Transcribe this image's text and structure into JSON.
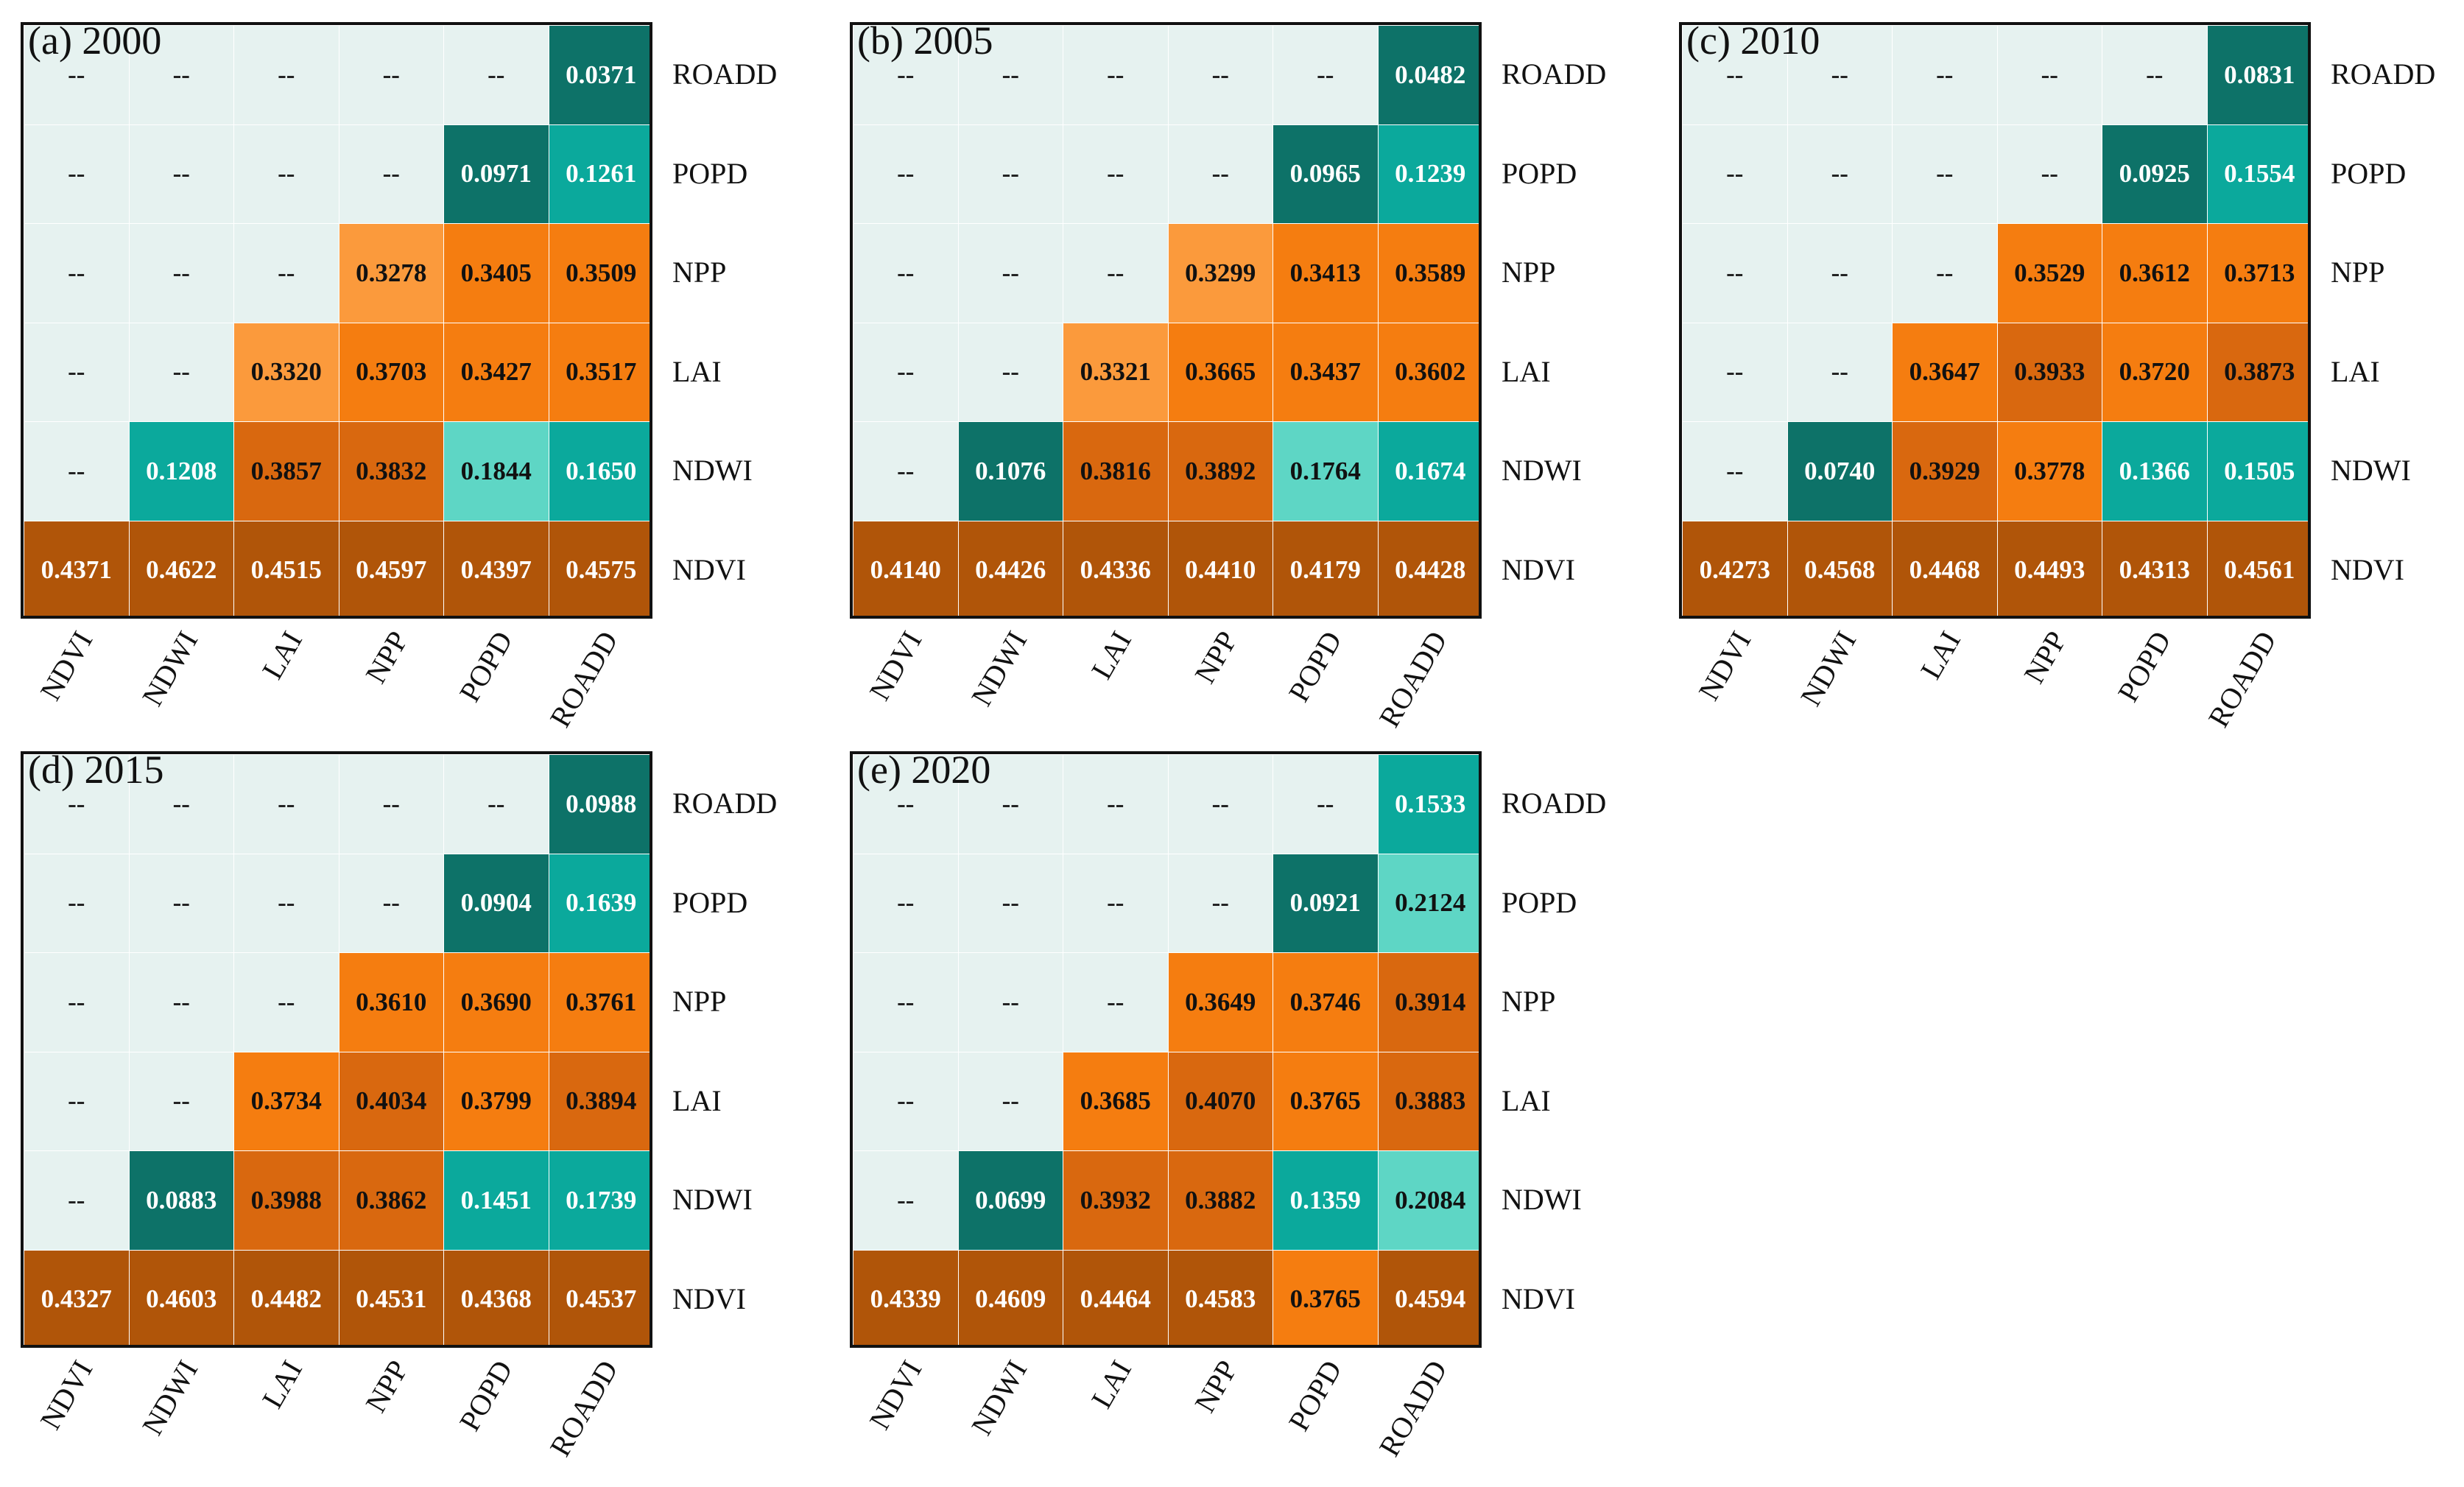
{
  "chart_data": [
    {
      "type": "heatmap",
      "title": "(a) 2000",
      "x_labels": [
        "NDVI",
        "NDWI",
        "LAI",
        "NPP",
        "POPD",
        "ROADD"
      ],
      "y_labels_top_to_bottom": [
        "ROADD",
        "POPD",
        "NPP",
        "LAI",
        "NDWI",
        "NDVI"
      ],
      "empty_symbol": "--",
      "cells": [
        [
          "--",
          "--",
          "--",
          "--",
          "--",
          "0.0371"
        ],
        [
          "--",
          "--",
          "--",
          "--",
          "0.0971",
          "0.1261"
        ],
        [
          "--",
          "--",
          "--",
          "0.3278",
          "0.3405",
          "0.3509"
        ],
        [
          "--",
          "--",
          "0.3320",
          "0.3703",
          "0.3427",
          "0.3517"
        ],
        [
          "--",
          "0.1208",
          "0.3857",
          "0.3832",
          "0.1844",
          "0.1650"
        ],
        [
          "0.4371",
          "0.4622",
          "0.4515",
          "0.4597",
          "0.4397",
          "0.4575"
        ]
      ]
    },
    {
      "type": "heatmap",
      "title": "(b) 2005",
      "x_labels": [
        "NDVI",
        "NDWI",
        "LAI",
        "NPP",
        "POPD",
        "ROADD"
      ],
      "y_labels_top_to_bottom": [
        "ROADD",
        "POPD",
        "NPP",
        "LAI",
        "NDWI",
        "NDVI"
      ],
      "empty_symbol": "--",
      "cells": [
        [
          "--",
          "--",
          "--",
          "--",
          "--",
          "0.0482"
        ],
        [
          "--",
          "--",
          "--",
          "--",
          "0.0965",
          "0.1239"
        ],
        [
          "--",
          "--",
          "--",
          "0.3299",
          "0.3413",
          "0.3589"
        ],
        [
          "--",
          "--",
          "0.3321",
          "0.3665",
          "0.3437",
          "0.3602"
        ],
        [
          "--",
          "0.1076",
          "0.3816",
          "0.3892",
          "0.1764",
          "0.1674"
        ],
        [
          "0.4140",
          "0.4426",
          "0.4336",
          "0.4410",
          "0.4179",
          "0.4428"
        ]
      ]
    },
    {
      "type": "heatmap",
      "title": "(c) 2010",
      "x_labels": [
        "NDVI",
        "NDWI",
        "LAI",
        "NPP",
        "POPD",
        "ROADD"
      ],
      "y_labels_top_to_bottom": [
        "ROADD",
        "POPD",
        "NPP",
        "LAI",
        "NDWI",
        "NDVI"
      ],
      "empty_symbol": "--",
      "cells": [
        [
          "--",
          "--",
          "--",
          "--",
          "--",
          "0.0831"
        ],
        [
          "--",
          "--",
          "--",
          "--",
          "0.0925",
          "0.1554"
        ],
        [
          "--",
          "--",
          "--",
          "0.3529",
          "0.3612",
          "0.3713"
        ],
        [
          "--",
          "--",
          "0.3647",
          "0.3933",
          "0.3720",
          "0.3873"
        ],
        [
          "--",
          "0.0740",
          "0.3929",
          "0.3778",
          "0.1366",
          "0.1505"
        ],
        [
          "0.4273",
          "0.4568",
          "0.4468",
          "0.4493",
          "0.4313",
          "0.4561"
        ]
      ]
    },
    {
      "type": "heatmap",
      "title": "(d) 2015",
      "x_labels": [
        "NDVI",
        "NDWI",
        "LAI",
        "NPP",
        "POPD",
        "ROADD"
      ],
      "y_labels_top_to_bottom": [
        "ROADD",
        "POPD",
        "NPP",
        "LAI",
        "NDWI",
        "NDVI"
      ],
      "empty_symbol": "--",
      "cells": [
        [
          "--",
          "--",
          "--",
          "--",
          "--",
          "0.0988"
        ],
        [
          "--",
          "--",
          "--",
          "--",
          "0.0904",
          "0.1639"
        ],
        [
          "--",
          "--",
          "--",
          "0.3610",
          "0.3690",
          "0.3761"
        ],
        [
          "--",
          "--",
          "0.3734",
          "0.4034",
          "0.3799",
          "0.3894"
        ],
        [
          "--",
          "0.0883",
          "0.3988",
          "0.3862",
          "0.1451",
          "0.1739"
        ],
        [
          "0.4327",
          "0.4603",
          "0.4482",
          "0.4531",
          "0.4368",
          "0.4537"
        ]
      ]
    },
    {
      "type": "heatmap",
      "title": "(e) 2020",
      "x_labels": [
        "NDVI",
        "NDWI",
        "LAI",
        "NPP",
        "POPD",
        "ROADD"
      ],
      "y_labels_top_to_bottom": [
        "ROADD",
        "POPD",
        "NPP",
        "LAI",
        "NDWI",
        "NDVI"
      ],
      "empty_symbol": "--",
      "cells": [
        [
          "--",
          "--",
          "--",
          "--",
          "--",
          "0.1533"
        ],
        [
          "--",
          "--",
          "--",
          "--",
          "0.0921",
          "0.2124"
        ],
        [
          "--",
          "--",
          "--",
          "0.3649",
          "0.3746",
          "0.3914"
        ],
        [
          "--",
          "--",
          "0.3685",
          "0.4070",
          "0.3765",
          "0.3883"
        ],
        [
          "--",
          "0.0699",
          "0.3932",
          "0.3882",
          "0.1359",
          "0.2084"
        ],
        [
          "0.4339",
          "0.4609",
          "0.4464",
          "0.4583",
          "0.3765",
          "0.4594"
        ]
      ]
    }
  ],
  "colors": {
    "empty": "#e6f2f0",
    "teal_dark": "#0d7268",
    "teal_mid": "#0ba99c",
    "teal_light": "#5ed6c5",
    "orange_light": "#fb9a3c",
    "orange": "#f57d10",
    "orange_dark": "#d9680f",
    "brown": "#b05509",
    "frame": "#111111"
  }
}
